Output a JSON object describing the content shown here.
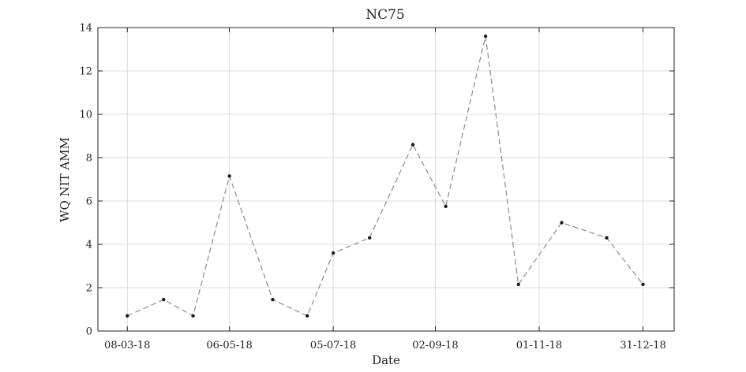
{
  "chart_data": {
    "type": "line",
    "title": "NC75",
    "xlabel": "Date",
    "ylabel": "WQ NIT AMM",
    "x": [
      "2018-03-08",
      "2018-03-29",
      "2018-04-15",
      "2018-05-06",
      "2018-05-31",
      "2018-06-20",
      "2018-07-05",
      "2018-07-26",
      "2018-08-20",
      "2018-09-08",
      "2018-10-01",
      "2018-10-20",
      "2018-11-14",
      "2018-12-10",
      "2018-12-31"
    ],
    "series": [
      {
        "name": "",
        "values": [
          0.7,
          1.45,
          0.7,
          7.15,
          1.45,
          0.7,
          3.6,
          4.3,
          8.6,
          5.75,
          13.6,
          2.15,
          5.0,
          4.3,
          2.15
        ]
      }
    ],
    "xlim": [
      "2017-02-16",
      "2019-01-19"
    ],
    "ylim": [
      0,
      14
    ],
    "xticks": [
      {
        "date": "2018-03-08",
        "label": "08-03-18"
      },
      {
        "date": "2018-05-06",
        "label": "06-05-18"
      },
      {
        "date": "2018-07-05",
        "label": "05-07-18"
      },
      {
        "date": "2018-09-02",
        "label": "02-09-18"
      },
      {
        "date": "2018-11-01",
        "label": "01-11-18"
      },
      {
        "date": "2018-12-31",
        "label": "31-12-18"
      }
    ],
    "yticks": [
      0,
      2,
      4,
      6,
      8,
      10,
      12,
      14
    ],
    "grid": true,
    "colors": {
      "line": "#8c8c8c",
      "marker": "#1a1a1a",
      "grid": "#dcdcdc",
      "frame": "#262626"
    }
  }
}
